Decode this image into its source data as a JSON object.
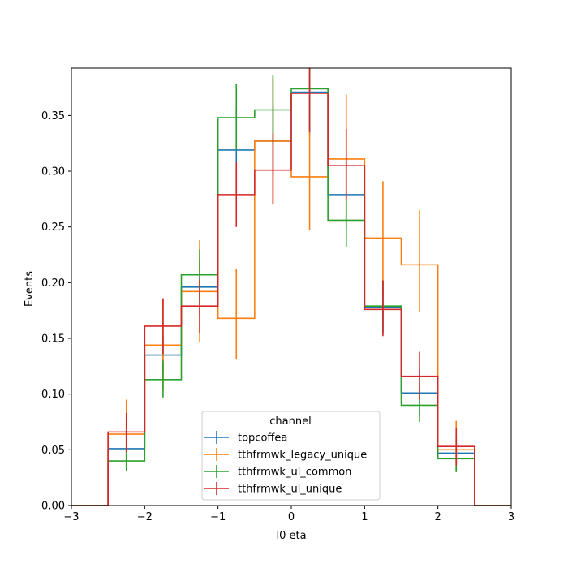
{
  "chart_data": {
    "type": "histogram-step",
    "xlabel": "l0 eta",
    "ylabel": "Events",
    "xlim": [
      -3,
      3
    ],
    "ylim": [
      0,
      0.3925
    ],
    "xticks": [
      -3,
      -2,
      -1,
      0,
      1,
      2,
      3
    ],
    "yticks": [
      0.0,
      0.05,
      0.1,
      0.15,
      0.2,
      0.25,
      0.3,
      0.35
    ],
    "ytick_labels": [
      "0.00",
      "0.05",
      "0.10",
      "0.15",
      "0.20",
      "0.25",
      "0.30",
      "0.35"
    ],
    "bin_edges": [
      -3,
      -2.5,
      -2,
      -1.5,
      -1,
      -0.5,
      0,
      0.5,
      1,
      1.5,
      2,
      2.5,
      3
    ],
    "legend": {
      "title": "channel",
      "placement": "lower-center"
    },
    "series": [
      {
        "name": "topcoffea",
        "color": "#1f77b4",
        "values": [
          0,
          0.051,
          0.135,
          0.196,
          0.319,
          0.327,
          0.371,
          0.279,
          0.178,
          0.101,
          0.047,
          0
        ],
        "err": [
          [
            0,
            0
          ],
          [
            0.035,
            0.068
          ],
          [
            0.118,
            0.152
          ],
          [
            0.172,
            0.22
          ],
          [
            0.28,
            0.358
          ],
          [
            0.296,
            0.358
          ],
          [
            0.333,
            0.409
          ],
          [
            0.249,
            0.309
          ],
          [
            0.154,
            0.202
          ],
          [
            0.08,
            0.122
          ],
          [
            0.032,
            0.062
          ],
          [
            0,
            0
          ]
        ]
      },
      {
        "name": "tthfrmwk_legacy_unique",
        "color": "#ff7f0e",
        "values": [
          0,
          0.064,
          0.144,
          0.192,
          0.168,
          0.327,
          0.295,
          0.311,
          0.24,
          0.216,
          0.05,
          0
        ],
        "err": [
          [
            0,
            0
          ],
          [
            0.033,
            0.095
          ],
          [
            0.103,
            0.185
          ],
          [
            0.147,
            0.238
          ],
          [
            0.131,
            0.212
          ],
          [
            0.27,
            0.384
          ],
          [
            0.247,
            0.336
          ],
          [
            0.254,
            0.369
          ],
          [
            0.189,
            0.291
          ],
          [
            0.174,
            0.265
          ],
          [
            0.03,
            0.076
          ],
          [
            0,
            0
          ]
        ]
      },
      {
        "name": "tthfrmwk_ul_common",
        "color": "#2ca02c",
        "values": [
          0,
          0.04,
          0.113,
          0.207,
          0.348,
          0.355,
          0.374,
          0.256,
          0.179,
          0.09,
          0.042,
          0
        ],
        "err": [
          [
            0,
            0
          ],
          [
            0.031,
            0.051
          ],
          [
            0.097,
            0.13
          ],
          [
            0.185,
            0.23
          ],
          [
            0.319,
            0.378
          ],
          [
            0.324,
            0.386
          ],
          [
            0.337,
            0.41
          ],
          [
            0.232,
            0.28
          ],
          [
            0.156,
            0.202
          ],
          [
            0.075,
            0.106
          ],
          [
            0.03,
            0.055
          ],
          [
            0,
            0
          ]
        ]
      },
      {
        "name": "tthfrmwk_ul_unique",
        "color": "#d62728",
        "values": [
          0,
          0.066,
          0.161,
          0.179,
          0.279,
          0.301,
          0.37,
          0.305,
          0.176,
          0.116,
          0.053,
          0
        ],
        "err": [
          [
            0,
            0
          ],
          [
            0.048,
            0.083
          ],
          [
            0.136,
            0.186
          ],
          [
            0.155,
            0.203
          ],
          [
            0.25,
            0.308
          ],
          [
            0.27,
            0.334
          ],
          [
            0.335,
            0.405
          ],
          [
            0.275,
            0.338
          ],
          [
            0.152,
            0.202
          ],
          [
            0.095,
            0.138
          ],
          [
            0.036,
            0.07
          ],
          [
            0,
            0
          ]
        ]
      }
    ]
  }
}
